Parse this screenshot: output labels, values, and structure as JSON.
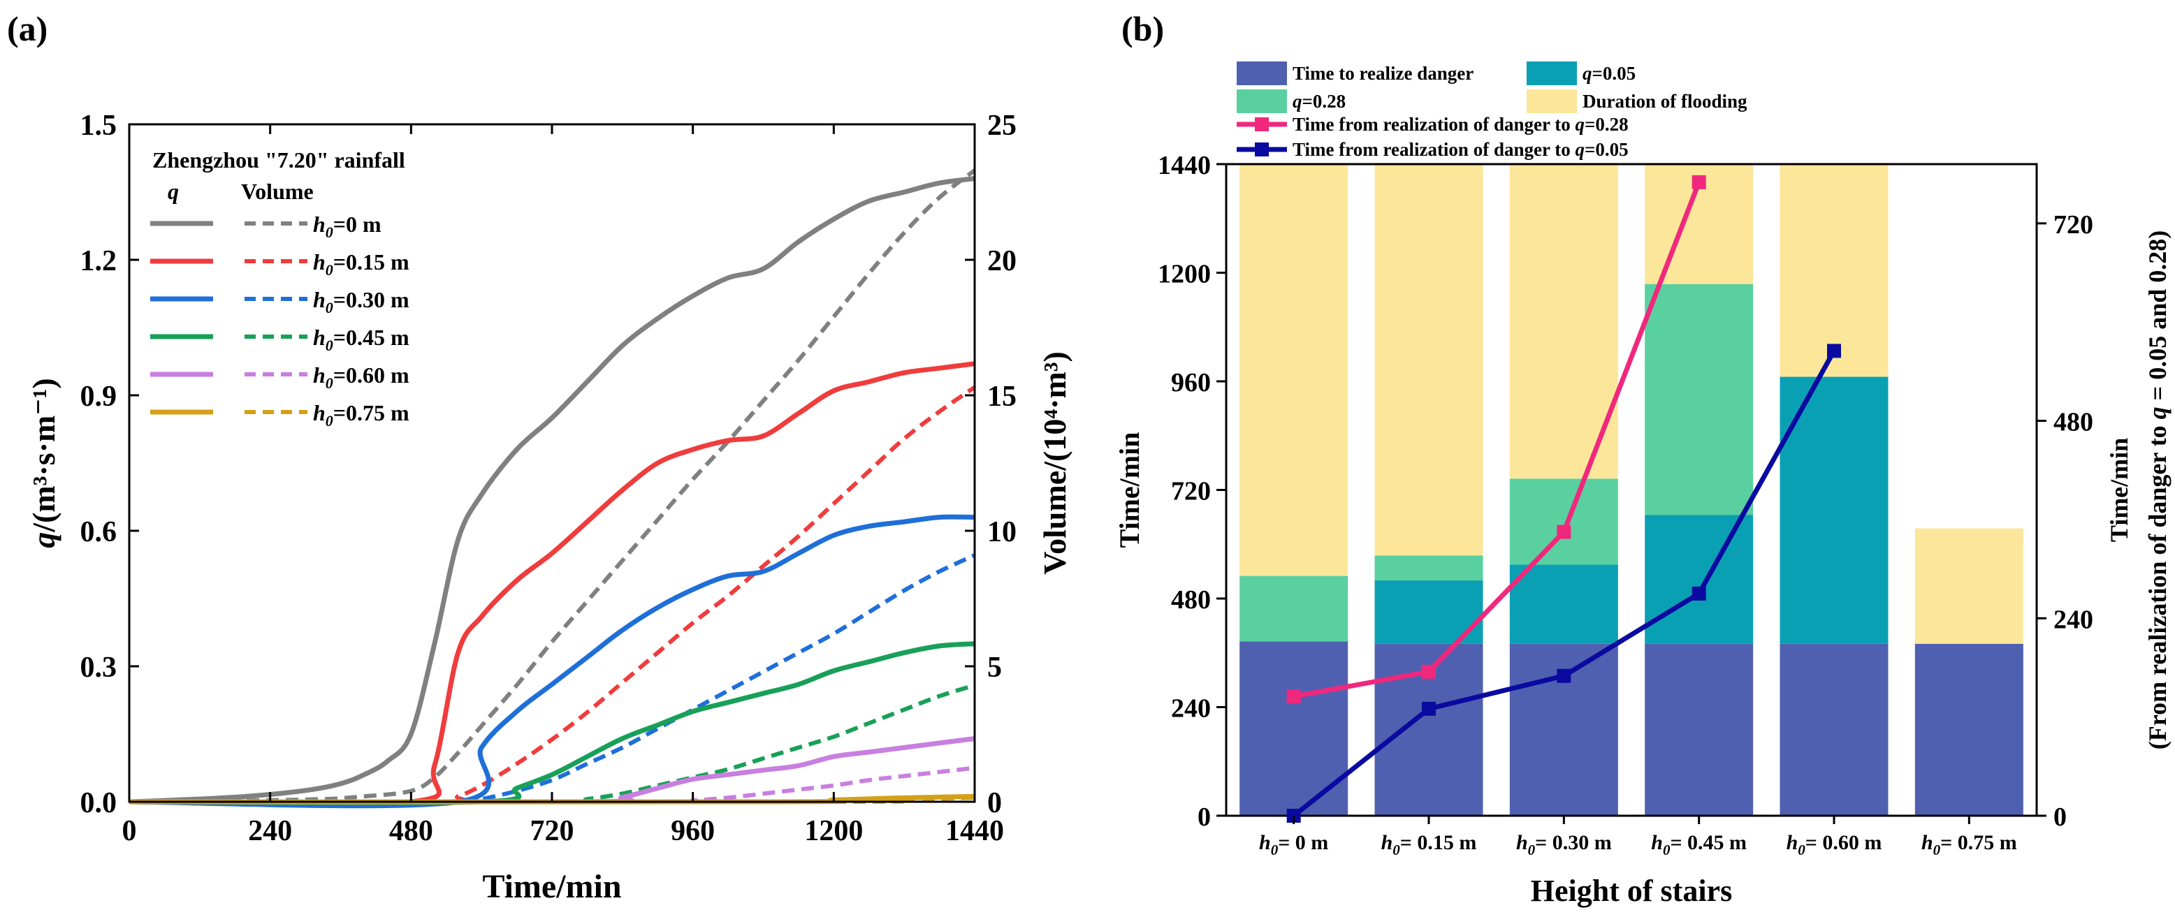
{
  "figure": {
    "panel_a_label": "(a)",
    "panel_b_label": "(b)"
  },
  "chart_data": [
    {
      "panel": "(a)",
      "type": "line",
      "title": "",
      "xlabel": "Time/min",
      "ylabel": "q/(m³·s·m⁻¹)",
      "y2label": "Volume/(10⁴·m³)",
      "xlim": [
        0,
        1440
      ],
      "ylim": [
        0,
        1.5
      ],
      "y2lim": [
        0,
        25
      ],
      "x_ticks": [
        "0",
        "240",
        "480",
        "720",
        "960",
        "1200",
        "1440"
      ],
      "y_ticks": [
        "0.0",
        "0.3",
        "0.6",
        "0.9",
        "1.2",
        "1.5"
      ],
      "y2_ticks": [
        "0",
        "5",
        "10",
        "15",
        "20",
        "25"
      ],
      "legend": {
        "title": "Zhengzhou \"7.20\" rainfall",
        "col_q": "q",
        "col_volume": "Volume",
        "entries": [
          "h0=0 m",
          "h0=0.15 m",
          "h0=0.30 m",
          "h0=0.45 m",
          "h0=0.60 m",
          "h0=0.75 m"
        ]
      },
      "colors": [
        "#808080",
        "#f03c3c",
        "#1f6fd9",
        "#18a058",
        "#c87fe0",
        "#d4a017"
      ],
      "q_series": [
        {
          "name": "h0=0 m",
          "x": [
            0,
            100,
            200,
            300,
            360,
            400,
            440,
            480,
            520,
            560,
            600,
            660,
            720,
            780,
            840,
            900,
            960,
            1020,
            1080,
            1140,
            1200,
            1260,
            1320,
            1380,
            1440
          ],
          "values": [
            0,
            0.005,
            0.012,
            0.025,
            0.04,
            0.06,
            0.09,
            0.15,
            0.35,
            0.58,
            0.68,
            0.78,
            0.85,
            0.93,
            1.01,
            1.07,
            1.12,
            1.16,
            1.18,
            1.24,
            1.29,
            1.33,
            1.35,
            1.37,
            1.38
          ]
        },
        {
          "name": "h0=0.15 m",
          "x": [
            0,
            480,
            520,
            560,
            600,
            660,
            720,
            780,
            840,
            900,
            960,
            1020,
            1080,
            1140,
            1200,
            1260,
            1320,
            1380,
            1440
          ],
          "values": [
            0,
            0,
            0.08,
            0.33,
            0.41,
            0.49,
            0.55,
            0.62,
            0.69,
            0.75,
            0.78,
            0.8,
            0.81,
            0.86,
            0.91,
            0.93,
            0.95,
            0.96,
            0.97
          ]
        },
        {
          "name": "h0=0.30 m",
          "x": [
            0,
            560,
            600,
            660,
            720,
            780,
            840,
            900,
            960,
            1020,
            1080,
            1140,
            1200,
            1260,
            1320,
            1380,
            1440
          ],
          "values": [
            0,
            0,
            0.12,
            0.2,
            0.26,
            0.32,
            0.38,
            0.43,
            0.47,
            0.5,
            0.51,
            0.55,
            0.59,
            0.61,
            0.62,
            0.63,
            0.63
          ]
        },
        {
          "name": "h0=0.45 m",
          "x": [
            0,
            600,
            660,
            720,
            780,
            840,
            900,
            960,
            1020,
            1080,
            1140,
            1200,
            1260,
            1320,
            1380,
            1440
          ],
          "values": [
            0,
            0,
            0.03,
            0.06,
            0.1,
            0.14,
            0.17,
            0.2,
            0.22,
            0.24,
            0.26,
            0.29,
            0.31,
            0.33,
            0.345,
            0.35
          ]
        },
        {
          "name": "h0=0.60 m",
          "x": [
            0,
            780,
            840,
            900,
            960,
            1020,
            1080,
            1140,
            1200,
            1260,
            1320,
            1380,
            1440
          ],
          "values": [
            0,
            0,
            0.01,
            0.03,
            0.05,
            0.06,
            0.07,
            0.08,
            0.1,
            0.11,
            0.12,
            0.13,
            0.14
          ]
        },
        {
          "name": "h0=0.75 m",
          "x": [
            0,
            1100,
            1200,
            1300,
            1440
          ],
          "values": [
            0,
            0,
            0.004,
            0.008,
            0.012
          ]
        }
      ],
      "volume_series": [
        {
          "name": "h0=0 m",
          "x": [
            0,
            300,
            400,
            480,
            520,
            560,
            600,
            660,
            720,
            780,
            840,
            900,
            960,
            1020,
            1080,
            1140,
            1200,
            1260,
            1320,
            1380,
            1440
          ],
          "values": [
            0,
            0.08,
            0.2,
            0.4,
            0.9,
            1.8,
            2.8,
            4.3,
            5.9,
            7.4,
            8.9,
            10.4,
            11.9,
            13.3,
            14.8,
            16.3,
            17.9,
            19.5,
            21,
            22.3,
            23.3
          ]
        },
        {
          "name": "h0=0.15 m",
          "x": [
            0,
            520,
            560,
            600,
            660,
            720,
            780,
            840,
            900,
            960,
            1020,
            1080,
            1140,
            1200,
            1260,
            1320,
            1380,
            1440
          ],
          "values": [
            0,
            0,
            0.2,
            0.6,
            1.4,
            2.3,
            3.3,
            4.4,
            5.5,
            6.6,
            7.6,
            8.7,
            9.8,
            11,
            12.2,
            13.4,
            14.4,
            15.3
          ]
        },
        {
          "name": "h0=0.30 m",
          "x": [
            0,
            560,
            600,
            660,
            720,
            780,
            840,
            900,
            960,
            1020,
            1080,
            1140,
            1200,
            1260,
            1320,
            1380,
            1440
          ],
          "values": [
            0,
            0,
            0.1,
            0.4,
            0.8,
            1.4,
            2,
            2.7,
            3.4,
            4.1,
            4.8,
            5.5,
            6.2,
            7,
            7.8,
            8.5,
            9.1
          ]
        },
        {
          "name": "h0=0.45 m",
          "x": [
            0,
            720,
            780,
            840,
            900,
            960,
            1020,
            1080,
            1140,
            1200,
            1260,
            1320,
            1380,
            1440
          ],
          "values": [
            0,
            0,
            0.1,
            0.3,
            0.6,
            0.9,
            1.2,
            1.6,
            2,
            2.4,
            2.9,
            3.4,
            3.9,
            4.3
          ]
        },
        {
          "name": "h0=0.60 m",
          "x": [
            0,
            900,
            960,
            1020,
            1080,
            1140,
            1200,
            1260,
            1320,
            1380,
            1440
          ],
          "values": [
            0,
            0,
            0.05,
            0.15,
            0.3,
            0.45,
            0.6,
            0.8,
            0.95,
            1.1,
            1.25
          ]
        },
        {
          "name": "h0=0.75 m",
          "x": [
            0,
            1200,
            1300,
            1440
          ],
          "values": [
            0,
            0,
            0.05,
            0.15
          ]
        }
      ]
    },
    {
      "panel": "(b)",
      "type": "bar",
      "stacked": true,
      "title": "",
      "xlabel": "Height of stairs",
      "ylabel": "Time/min",
      "y2label": "Time/min",
      "y2sublabel": "(From realization of danger to q = 0.05 and 0.28)",
      "ylim": [
        0,
        1440
      ],
      "y2lim": [
        0,
        792
      ],
      "y_ticks": [
        "0",
        "240",
        "480",
        "720",
        "960",
        "1200",
        "1440"
      ],
      "y2_ticks": [
        "0",
        "240",
        "480",
        "720"
      ],
      "categories": [
        "h0= 0 m",
        "h0= 0.15 m",
        "h0= 0.30 m",
        "h0= 0.45 m",
        "h0= 0.60 m",
        "h0= 0.75 m"
      ],
      "series": [
        {
          "name": "Time to realize danger",
          "color": "#5060b0",
          "values": [
            385,
            380,
            380,
            380,
            380,
            380
          ]
        },
        {
          "name": "q=0.05",
          "color": "#0aa0b4",
          "values": [
            0,
            140,
            175,
            285,
            590,
            0
          ]
        },
        {
          "name": "q=0.28",
          "color": "#5ad0a0",
          "values": [
            145,
            55,
            190,
            510,
            0,
            0
          ]
        },
        {
          "name": "Duration of flooding",
          "color": "#fce69a",
          "values": [
            910,
            865,
            695,
            265,
            470,
            255
          ]
        }
      ],
      "line_series": [
        {
          "name": "Time from realization of danger to q=0.28",
          "color": "#f0287d",
          "values": [
            145,
            175,
            345,
            770,
            null,
            null
          ]
        },
        {
          "name": "Time from realization of danger to q=0.05",
          "color": "#0a0aa0",
          "values": [
            0,
            130,
            170,
            270,
            565,
            null
          ]
        }
      ],
      "legend": [
        {
          "label": "Time to realize danger"
        },
        {
          "label": "q=0.05"
        },
        {
          "label": "q=0.28"
        },
        {
          "label": "Duration of flooding"
        },
        {
          "label": "Time from realization of danger to q=0.28"
        },
        {
          "label": "Time from realization of danger to q=0.05"
        }
      ]
    }
  ]
}
